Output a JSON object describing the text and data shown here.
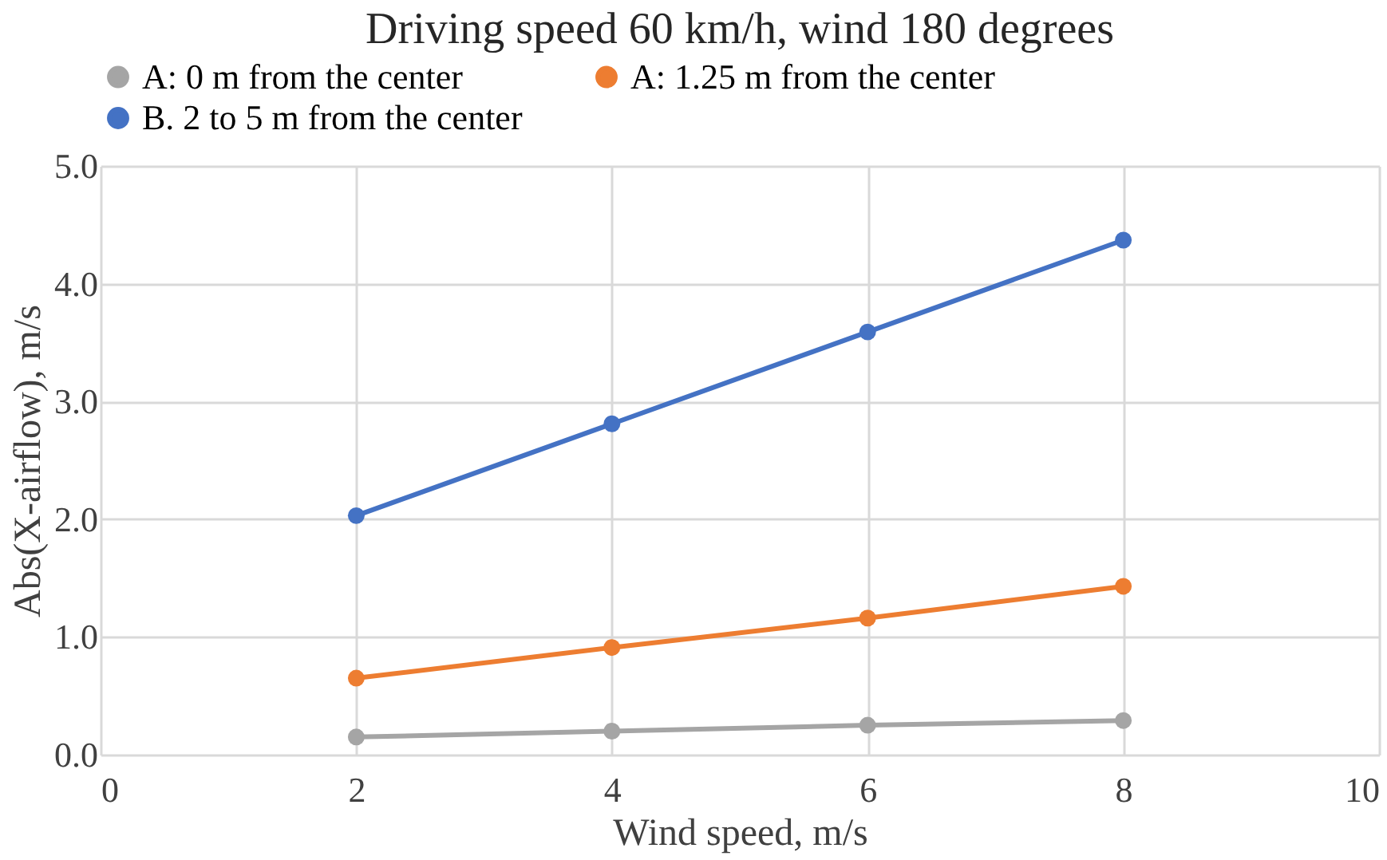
{
  "chart_data": {
    "type": "line",
    "title": "Driving speed 60 km/h, wind 180 degrees",
    "xlabel": "Wind speed, m/s",
    "ylabel": "Abs(X-airflow), m/s",
    "x": [
      2,
      4,
      6,
      8
    ],
    "series": [
      {
        "name": "A: 0 m from the center",
        "color": "#a5a5a5",
        "values": [
          0.15,
          0.2,
          0.25,
          0.29
        ]
      },
      {
        "name": "A: 1.25 m from the center",
        "color": "#ed7d31",
        "values": [
          0.65,
          0.91,
          1.16,
          1.43
        ]
      },
      {
        "name": "B. 2 to 5 m from the center",
        "color": "#4472c4",
        "values": [
          2.03,
          2.81,
          3.59,
          4.37
        ]
      }
    ],
    "xlim": [
      0,
      10
    ],
    "xticks": [
      0,
      2,
      4,
      6,
      8,
      10
    ],
    "ylim": [
      0,
      5
    ],
    "yticks": [
      {
        "value": 0,
        "label": "0.0"
      },
      {
        "value": 1,
        "label": "1.0"
      },
      {
        "value": 2,
        "label": "2.0"
      },
      {
        "value": 3,
        "label": "3.0"
      },
      {
        "value": 4,
        "label": "4.0"
      },
      {
        "value": 5,
        "label": "5.0"
      }
    ],
    "grid": true,
    "legend": "top",
    "marker": "circle",
    "line_style": "solid"
  }
}
